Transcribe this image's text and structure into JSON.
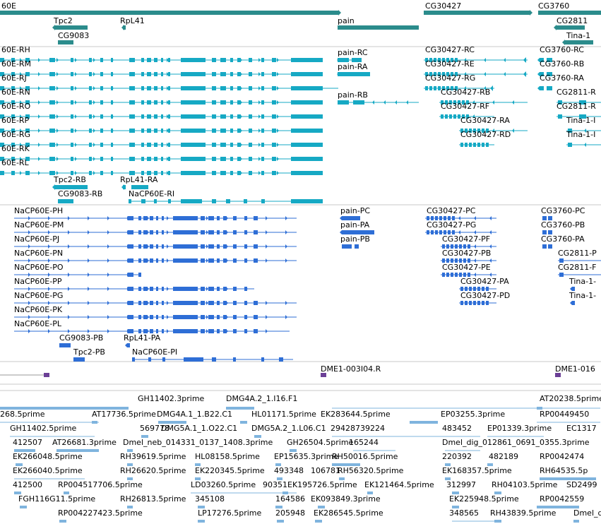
{
  "colors": {
    "gene": "#2b8c8c",
    "transcript": "#16a9c4",
    "protein": "#2e6ed6",
    "probe": "#6b3f96",
    "est": "#7fb4de",
    "divider": "#c8c8c8"
  },
  "gene_track": {
    "bars": [
      {
        "name": "NaCP60E",
        "label": "60E"
      },
      {
        "name": "Tpc2",
        "label": "Tpc2"
      },
      {
        "name": "RpL41",
        "label": "RpL41"
      },
      {
        "name": "CG9083",
        "label": "CG9083"
      },
      {
        "name": "pain",
        "label": "pain"
      },
      {
        "name": "CG30427",
        "label": "CG30427"
      },
      {
        "name": "CG3760",
        "label": "CG3760"
      },
      {
        "name": "CG2811",
        "label": "CG2811"
      },
      {
        "name": "Tina-1",
        "label": "Tina-1"
      }
    ]
  },
  "transcript_track": {
    "labels": [
      "60E-RH",
      "60E-RM",
      "60E-RJ",
      "60E-RN",
      "60E-RO",
      "60E-RP",
      "60E-RG",
      "60E-RK",
      "60E-RL",
      "Tpc2-RB",
      "RpL41-RA",
      "CG9083-RB",
      "NaCP60E-RI",
      "pain-RC",
      "pain-RA",
      "pain-RB",
      "CG30427-RC",
      "CG30427-RE",
      "CG30427-RG",
      "CG30427-RB",
      "CG30427-RF",
      "CG30427-RA",
      "CG30427-RD",
      "CG3760-RC",
      "CG3760-RB",
      "CG3760-RA",
      "CG2811-R",
      "CG2811-R",
      "Tina-1-I",
      "Tina-1-I"
    ]
  },
  "protein_track": {
    "labels": [
      "NaCP60E-PH",
      "NaCP60E-PM",
      "NaCP60E-PJ",
      "NaCP60E-PN",
      "NaCP60E-PO",
      "NaCP60E-PP",
      "NaCP60E-PG",
      "NaCP60E-PK",
      "NaCP60E-PL",
      "CG9083-PB",
      "RpL41-PA",
      "Tpc2-PB",
      "NaCP60E-PI",
      "pain-PC",
      "pain-PA",
      "pain-PB",
      "CG30427-PC",
      "CG30427-PG",
      "CG30427-PF",
      "CG30427-PB",
      "CG30427-PE",
      "CG30427-PA",
      "CG30427-PD",
      "CG3760-PC",
      "CG3760-PB",
      "CG3760-PA",
      "CG2811-P",
      "CG2811-F",
      "Tina-1-",
      "Tina-1-"
    ]
  },
  "probe_track": {
    "labels": [
      "DME1-003I04.R",
      "DME1-016"
    ]
  },
  "est_track": {
    "labels": [
      "GH11402.3prime",
      "DMG4A.2_1.I16.F1",
      "AT20238.5prime",
      "268.5prime",
      "AT17736.5prime",
      "DMG4A.1_1.B22.C1",
      "HL01171.5prime",
      "EK283644.5prime",
      "EP03255.3prime",
      "RP00449450",
      "GH11402.5prime",
      "569778",
      "DMG5A.1_1.O22.C1",
      "DMG5A.2_1.L06.C1",
      "29428739224",
      "483452",
      "EP01339.3prime",
      "EC1317",
      "412507",
      "AT26681.3prime",
      "Dmel_neb_014331_0137_1408.3prime",
      "GH26504.5prime",
      "165244",
      "Dmel_dig_012861_0691_0355.3prime",
      "EK266048.5prime",
      "RH39619.5prime",
      "HL08158.5prime",
      "EP15635.3prime",
      "RH50016.5prime",
      "220392",
      "482189",
      "RP0042474",
      "EK266040.5prime",
      "RH26620.5prime",
      "EK220345.5prime",
      "493348",
      "106781",
      "RH56320.5prime",
      "EK168357.5prime",
      "RH64535.5p",
      "412500",
      "RP004517706.5prime",
      "LD03260.5prime",
      "9035",
      "1EK195726.5prime",
      "EK121464.5prime",
      "312997",
      "RH04103.5prime",
      "SD2499",
      "FGH116G11.5prime",
      "RH26813.5prime",
      "345108",
      "164586",
      "EK093849.3prime",
      "EK225948.5prime",
      "RP0042559",
      "RP004227423.5prime",
      "LP17276.5prime",
      "205948",
      "EK286545.5prime",
      "348565",
      "RH43839.5prime",
      "Dmel_di"
    ]
  }
}
